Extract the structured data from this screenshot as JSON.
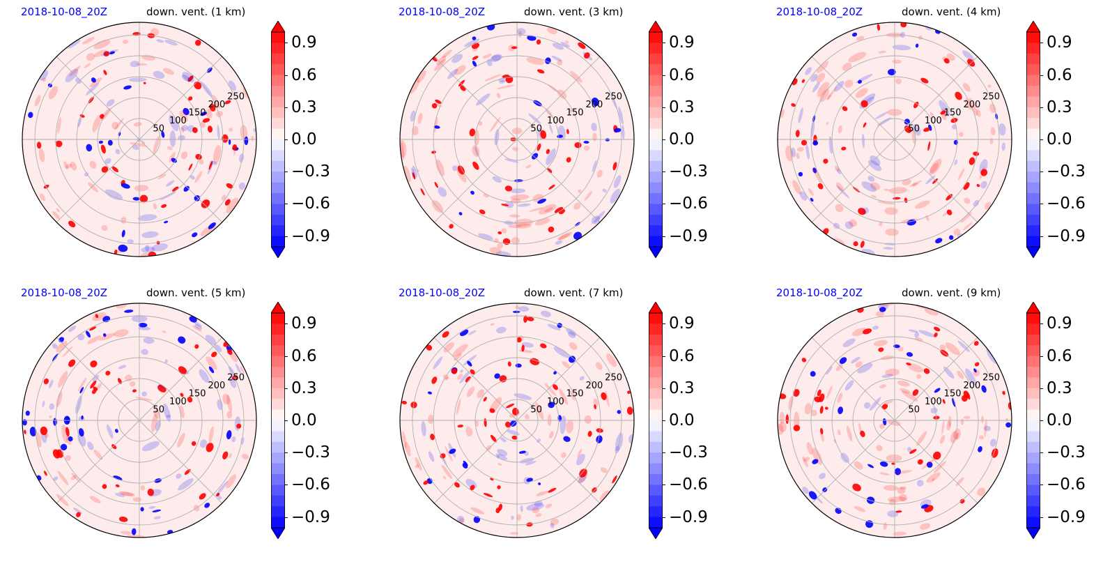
{
  "figure": {
    "panels": [
      {
        "date": "2018-10-08_20Z",
        "variable": "down. vent. (1 km)"
      },
      {
        "date": "2018-10-08_20Z",
        "variable": "down. vent. (3 km)"
      },
      {
        "date": "2018-10-08_20Z",
        "variable": "down. vent. (4 km)"
      },
      {
        "date": "2018-10-08_20Z",
        "variable": "down. vent. (5 km)"
      },
      {
        "date": "2018-10-08_20Z",
        "variable": "down. vent. (7 km)"
      },
      {
        "date": "2018-10-08_20Z",
        "variable": "down. vent. (9 km)"
      }
    ],
    "colors": {
      "positive": "#ff0000",
      "negative": "#0000ff",
      "neutral": "#ffffff",
      "date_text": "#0000ff",
      "grid": "#b0b0b0"
    }
  },
  "chart_data": [
    {
      "type": "heatmap",
      "projection": "polar",
      "title": "down. vent. (1 km)",
      "subtitle": "2018-10-08_20Z",
      "radial_ticks": [
        50,
        100,
        150,
        200,
        250
      ],
      "radial_tick_labels": [
        "50",
        "100",
        "150",
        "200",
        "250"
      ],
      "theta_gridlines_deg": [
        0,
        45,
        90,
        135,
        180,
        225,
        270,
        315
      ],
      "grid": true,
      "colorbar": {
        "ticks": [
          0.9,
          0.6,
          0.3,
          0.0,
          -0.3,
          -0.6,
          -0.9
        ],
        "tick_labels": [
          "0.9",
          "0.6",
          "0.3",
          "0.0",
          "−0.3",
          "−0.6",
          "−0.9"
        ],
        "range": [
          -1.0,
          1.0
        ],
        "cmap": "bwr",
        "extend": "both"
      }
    },
    {
      "type": "heatmap",
      "projection": "polar",
      "title": "down. vent. (3 km)",
      "subtitle": "2018-10-08_20Z",
      "radial_ticks": [
        50,
        100,
        150,
        200,
        250
      ],
      "radial_tick_labels": [
        "50",
        "100",
        "150",
        "200",
        "250"
      ],
      "theta_gridlines_deg": [
        0,
        45,
        90,
        135,
        180,
        225,
        270,
        315
      ],
      "grid": true,
      "colorbar": {
        "ticks": [
          0.9,
          0.6,
          0.3,
          0.0,
          -0.3,
          -0.6,
          -0.9
        ],
        "tick_labels": [
          "0.9",
          "0.6",
          "0.3",
          "0.0",
          "−0.3",
          "−0.6",
          "−0.9"
        ],
        "range": [
          -1.0,
          1.0
        ],
        "cmap": "bwr",
        "extend": "both"
      }
    },
    {
      "type": "heatmap",
      "projection": "polar",
      "title": "down. vent. (4 km)",
      "subtitle": "2018-10-08_20Z",
      "radial_ticks": [
        50,
        100,
        150,
        200,
        250
      ],
      "radial_tick_labels": [
        "50",
        "100",
        "150",
        "200",
        "250"
      ],
      "theta_gridlines_deg": [
        0,
        45,
        90,
        135,
        180,
        225,
        270,
        315
      ],
      "grid": true,
      "colorbar": {
        "ticks": [
          0.9,
          0.6,
          0.3,
          0.0,
          -0.3,
          -0.6,
          -0.9
        ],
        "tick_labels": [
          "0.9",
          "0.6",
          "0.3",
          "0.0",
          "−0.3",
          "−0.6",
          "−0.9"
        ],
        "range": [
          -1.0,
          1.0
        ],
        "cmap": "bwr",
        "extend": "both"
      }
    },
    {
      "type": "heatmap",
      "projection": "polar",
      "title": "down. vent. (5 km)",
      "subtitle": "2018-10-08_20Z",
      "radial_ticks": [
        50,
        100,
        150,
        200,
        250
      ],
      "radial_tick_labels": [
        "50",
        "100",
        "150",
        "200",
        "250"
      ],
      "theta_gridlines_deg": [
        0,
        45,
        90,
        135,
        180,
        225,
        270,
        315
      ],
      "grid": true,
      "colorbar": {
        "ticks": [
          0.9,
          0.6,
          0.3,
          0.0,
          -0.3,
          -0.6,
          -0.9
        ],
        "tick_labels": [
          "0.9",
          "0.6",
          "0.3",
          "0.0",
          "−0.3",
          "−0.6",
          "−0.9"
        ],
        "range": [
          -1.0,
          1.0
        ],
        "cmap": "bwr",
        "extend": "both"
      }
    },
    {
      "type": "heatmap",
      "projection": "polar",
      "title": "down. vent. (7 km)",
      "subtitle": "2018-10-08_20Z",
      "radial_ticks": [
        50,
        100,
        150,
        200,
        250
      ],
      "radial_tick_labels": [
        "50",
        "100",
        "150",
        "200",
        "250"
      ],
      "theta_gridlines_deg": [
        0,
        45,
        90,
        135,
        180,
        225,
        270,
        315
      ],
      "grid": true,
      "colorbar": {
        "ticks": [
          0.9,
          0.6,
          0.3,
          0.0,
          -0.3,
          -0.6,
          -0.9
        ],
        "tick_labels": [
          "0.9",
          "0.6",
          "0.3",
          "0.0",
          "−0.3",
          "−0.6",
          "−0.9"
        ],
        "range": [
          -1.0,
          1.0
        ],
        "cmap": "bwr",
        "extend": "both"
      }
    },
    {
      "type": "heatmap",
      "projection": "polar",
      "title": "down. vent. (9 km)",
      "subtitle": "2018-10-08_20Z",
      "radial_ticks": [
        50,
        100,
        150,
        200,
        250
      ],
      "radial_tick_labels": [
        "50",
        "100",
        "150",
        "200",
        "250"
      ],
      "theta_gridlines_deg": [
        0,
        45,
        90,
        135,
        180,
        225,
        270,
        315
      ],
      "grid": true,
      "colorbar": {
        "ticks": [
          0.9,
          0.6,
          0.3,
          0.0,
          -0.3,
          -0.6,
          -0.9
        ],
        "tick_labels": [
          "0.9",
          "0.6",
          "0.3",
          "0.0",
          "−0.3",
          "−0.6",
          "−0.9"
        ],
        "range": [
          -1.0,
          1.0
        ],
        "cmap": "bwr",
        "extend": "both"
      }
    }
  ]
}
